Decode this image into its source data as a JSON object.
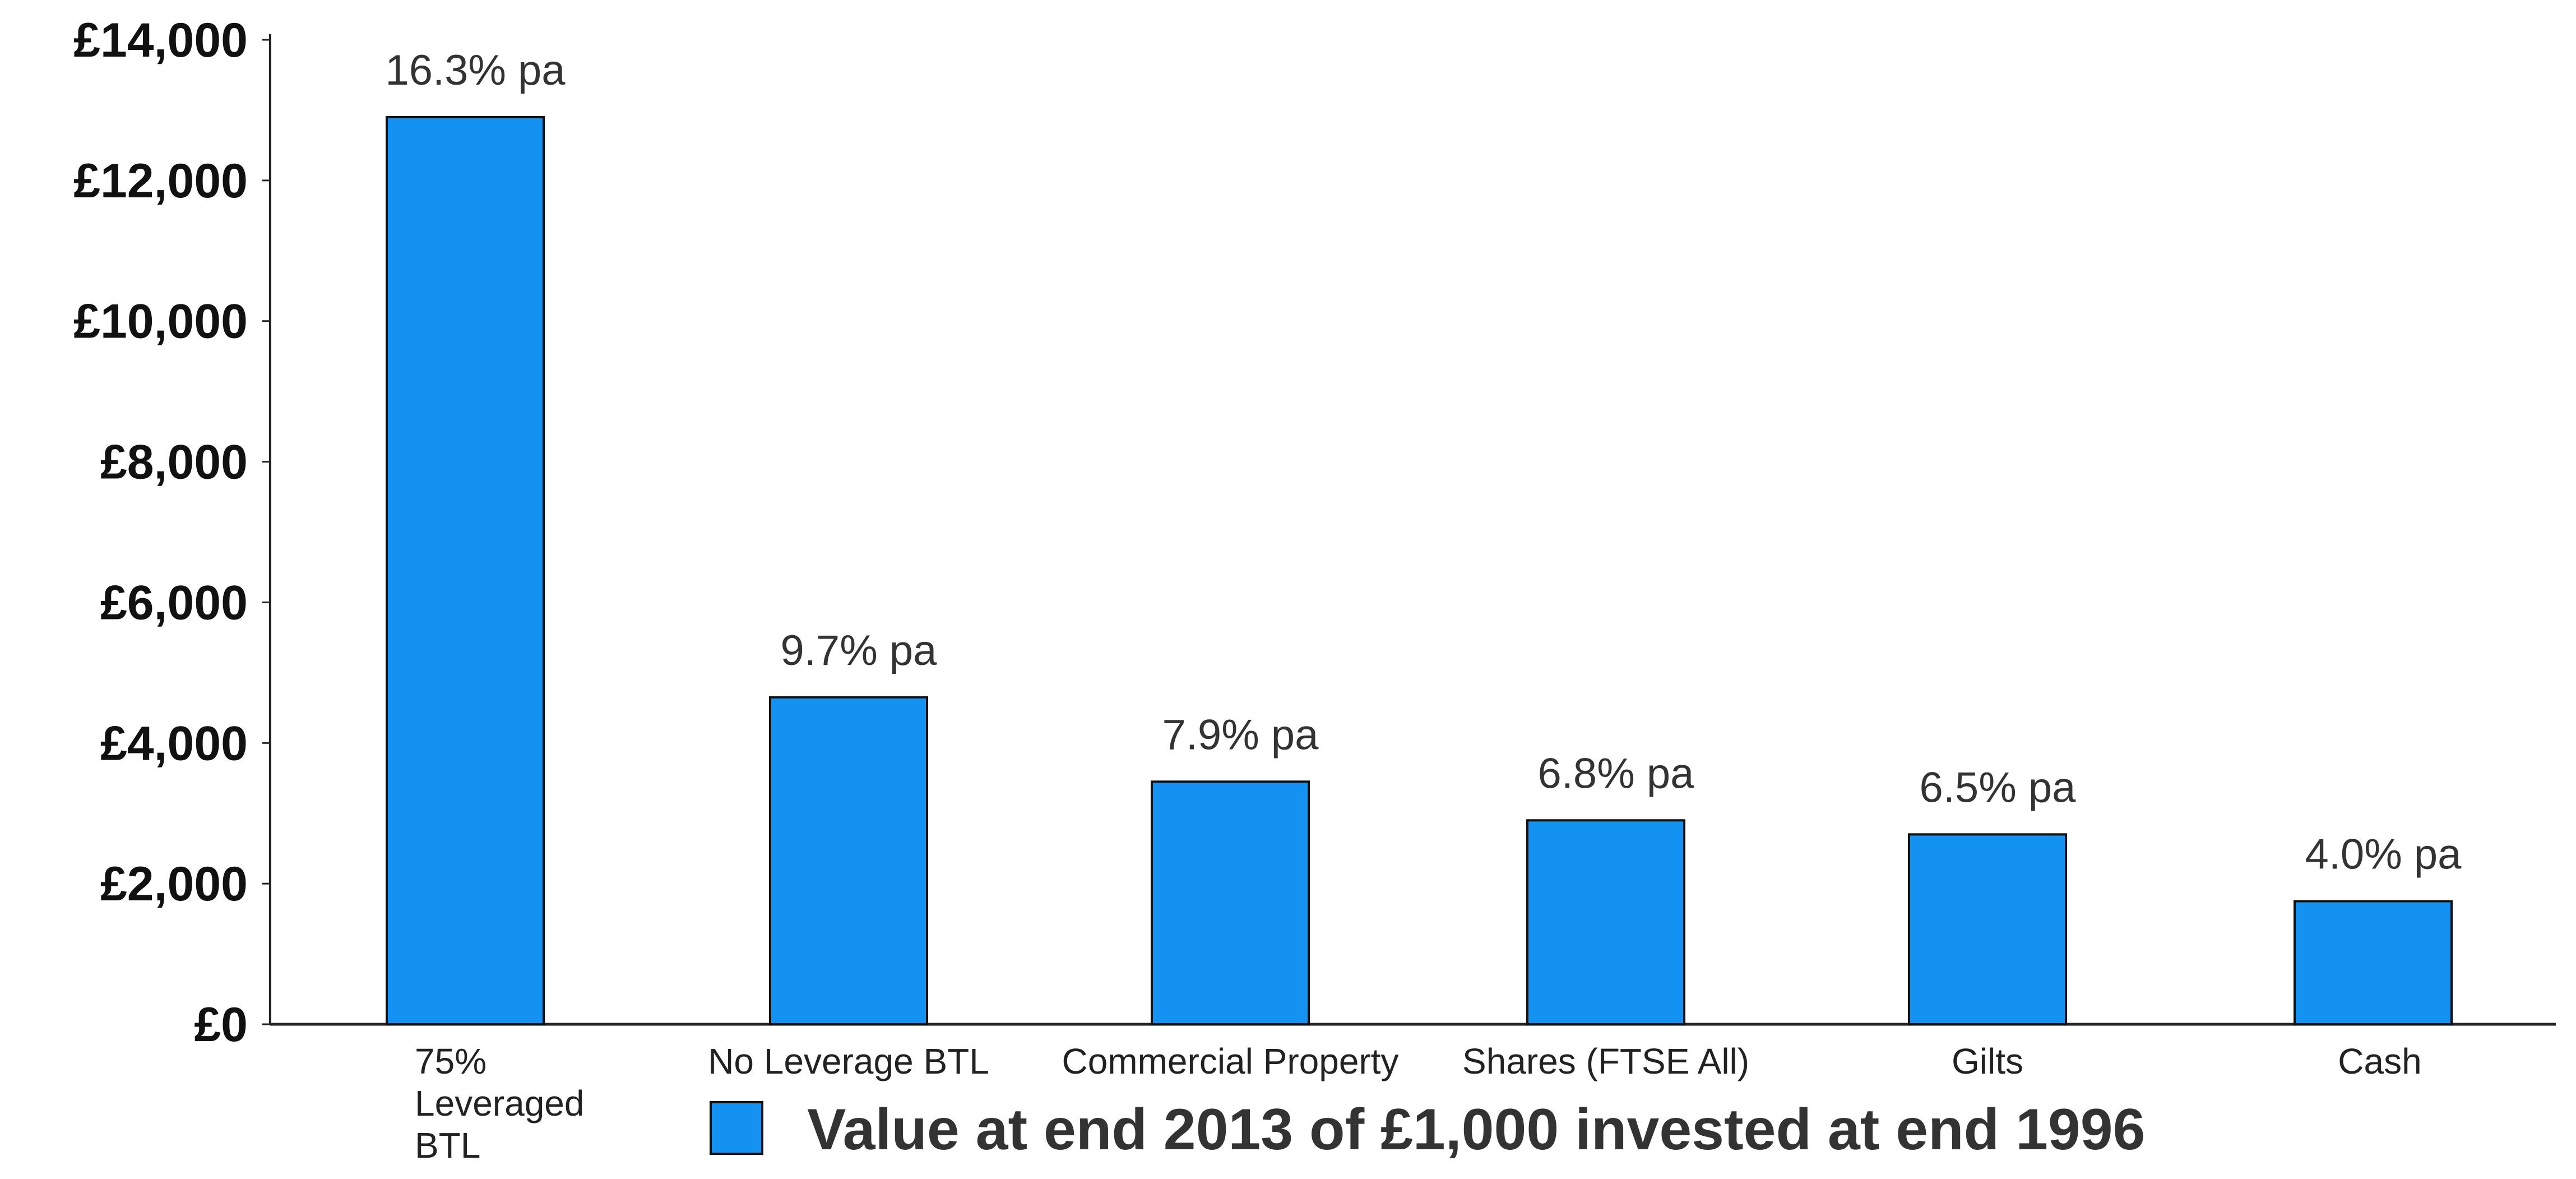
{
  "chart_data": {
    "type": "bar",
    "categories": [
      "75% Leveraged BTL",
      "No Leverage BTL",
      "Commercial Property",
      "Shares (FTSE All)",
      "Gilts",
      "Cash"
    ],
    "category_lines": [
      [
        "75%",
        "Leveraged",
        "BTL"
      ],
      [
        "No Leverage BTL"
      ],
      [
        "Commercial Property"
      ],
      [
        "Shares (FTSE All)"
      ],
      [
        "Gilts"
      ],
      [
        "Cash"
      ]
    ],
    "series": [
      {
        "name": "Value at end 2013 of £1,000 invested at end 1996",
        "values": [
          12900,
          4650,
          3450,
          2900,
          2700,
          1750
        ],
        "labels": [
          "16.3% pa",
          "9.7% pa",
          "7.9% pa",
          "6.8% pa",
          "6.5% pa",
          "4.0% pa"
        ],
        "color": "#1492F2"
      }
    ],
    "ylim": [
      0,
      14000
    ],
    "yticks": [
      0,
      2000,
      4000,
      6000,
      8000,
      10000,
      12000,
      14000
    ],
    "ytick_labels": [
      "£0",
      "£2,000",
      "£4,000",
      "£6,000",
      "£8,000",
      "£10,000",
      "£12,000",
      "£14,000"
    ],
    "title": "",
    "xlabel": "",
    "ylabel": "",
    "grid": false,
    "legend": "bottom"
  },
  "colors": {
    "bar": "#1492F2",
    "bar_outline": "#111111",
    "axis": "#222222"
  }
}
